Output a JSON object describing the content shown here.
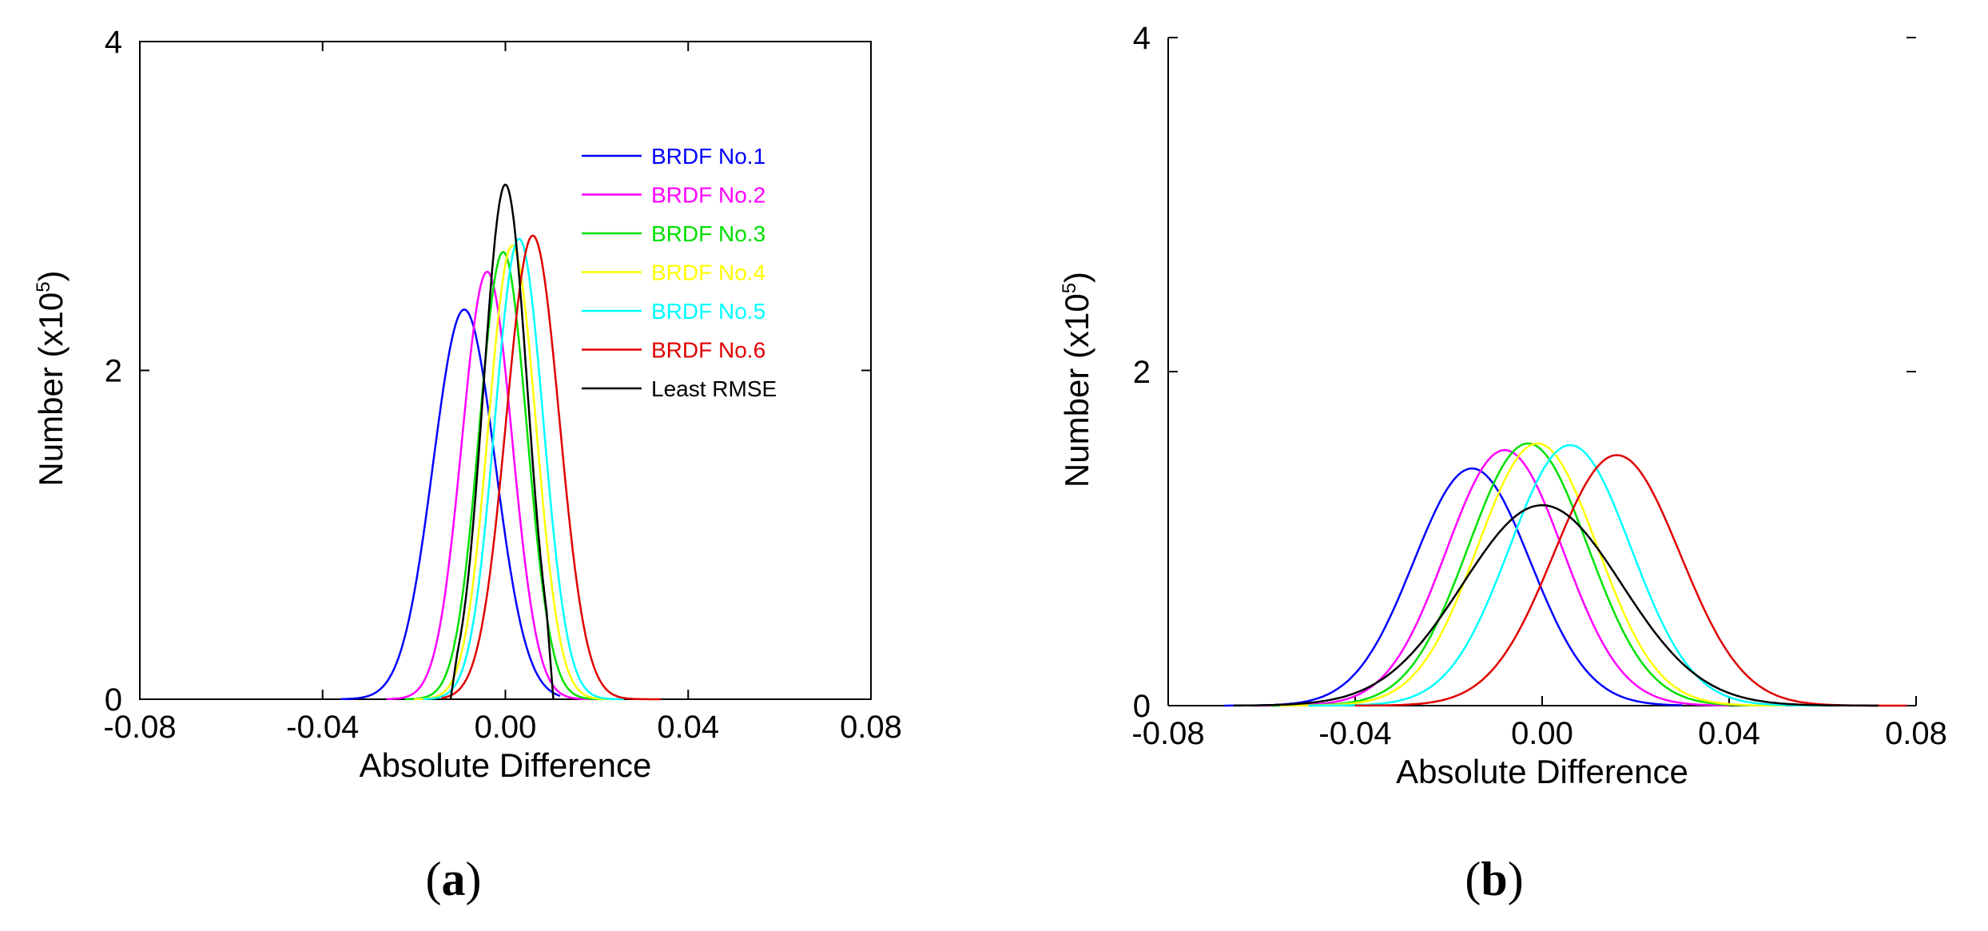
{
  "chart_data": [
    {
      "type": "line",
      "panel": "a",
      "caption_prefix": "(",
      "caption_letter": "a",
      "caption_suffix": ")",
      "xlabel": "Absolute Difference",
      "ylabel_main": "Number (x10",
      "ylabel_exp": "5",
      "ylabel_close": ")",
      "xlim": [
        -0.08,
        0.08
      ],
      "ylim": [
        0,
        4
      ],
      "xticks": [
        "-0.08",
        "-0.04",
        "0.00",
        "0.04",
        "0.08"
      ],
      "yticks": [
        "0",
        "2",
        "4"
      ],
      "legend_position": "top-right",
      "series": [
        {
          "name": "BRDF No.1",
          "color": "#0000ff",
          "shape": "gauss",
          "mu": -0.009,
          "sigma": 0.0068,
          "peak": 2.37,
          "xmin": -0.036,
          "xmax": 0.012
        },
        {
          "name": "BRDF No.2",
          "color": "#ff00ff",
          "shape": "gauss",
          "mu": -0.004,
          "sigma": 0.0055,
          "peak": 2.6,
          "xmin": -0.026,
          "xmax": 0.02
        },
        {
          "name": "BRDF No.3",
          "color": "#00e000",
          "shape": "gauss",
          "mu": -0.0005,
          "sigma": 0.0052,
          "peak": 2.72,
          "xmin": -0.022,
          "xmax": 0.022
        },
        {
          "name": "BRDF No.4",
          "color": "#ffff00",
          "shape": "gauss",
          "mu": 0.0015,
          "sigma": 0.0052,
          "peak": 2.76,
          "xmin": -0.02,
          "xmax": 0.024
        },
        {
          "name": "BRDF No.5",
          "color": "#00ffff",
          "shape": "gauss",
          "mu": 0.003,
          "sigma": 0.0053,
          "peak": 2.8,
          "xmin": -0.018,
          "xmax": 0.026
        },
        {
          "name": "BRDF No.6",
          "color": "#e00000",
          "shape": "gauss",
          "mu": 0.006,
          "sigma": 0.0058,
          "peak": 2.82,
          "xmin": -0.014,
          "xmax": 0.034
        },
        {
          "name": "Least RMSE",
          "color": "#000000",
          "shape": "clipped",
          "mu": 0.0,
          "sigma": 0.0048,
          "peak": 3.13,
          "clip_left": -0.0105,
          "clip_right": 0.009
        }
      ]
    },
    {
      "type": "line",
      "panel": "b",
      "caption_prefix": "(",
      "caption_letter": "b",
      "caption_suffix": ")",
      "xlabel": "Absolute Difference",
      "ylabel_main": "Number (x10",
      "ylabel_exp": "5",
      "ylabel_close": ")",
      "xlim": [
        -0.08,
        0.08
      ],
      "ylim": [
        0,
        4
      ],
      "xticks": [
        "-0.08",
        "-0.04",
        "0.00",
        "0.04",
        "0.08"
      ],
      "yticks": [
        "0",
        "2",
        "4"
      ],
      "series": [
        {
          "color": "#0000ff",
          "shape": "gauss",
          "mu": -0.015,
          "sigma": 0.0125,
          "peak": 1.42,
          "xmin": -0.068,
          "xmax": 0.03
        },
        {
          "color": "#ff00ff",
          "shape": "gauss",
          "mu": -0.008,
          "sigma": 0.0125,
          "peak": 1.53,
          "xmin": -0.062,
          "xmax": 0.04
        },
        {
          "color": "#00e000",
          "shape": "gauss",
          "mu": -0.003,
          "sigma": 0.0128,
          "peak": 1.57,
          "xmin": -0.058,
          "xmax": 0.05
        },
        {
          "color": "#ffff00",
          "shape": "gauss",
          "mu": -0.001,
          "sigma": 0.0128,
          "peak": 1.57,
          "xmin": -0.056,
          "xmax": 0.052
        },
        {
          "color": "#00ffff",
          "shape": "gauss",
          "mu": 0.006,
          "sigma": 0.013,
          "peak": 1.56,
          "xmin": -0.05,
          "xmax": 0.062
        },
        {
          "color": "#e00000",
          "shape": "gauss",
          "mu": 0.016,
          "sigma": 0.0135,
          "peak": 1.5,
          "xmin": -0.04,
          "xmax": 0.078
        },
        {
          "color": "#000000",
          "shape": "gauss",
          "mu": 0.0,
          "sigma": 0.017,
          "peak": 1.2,
          "xmin": -0.066,
          "xmax": 0.072
        }
      ]
    }
  ]
}
